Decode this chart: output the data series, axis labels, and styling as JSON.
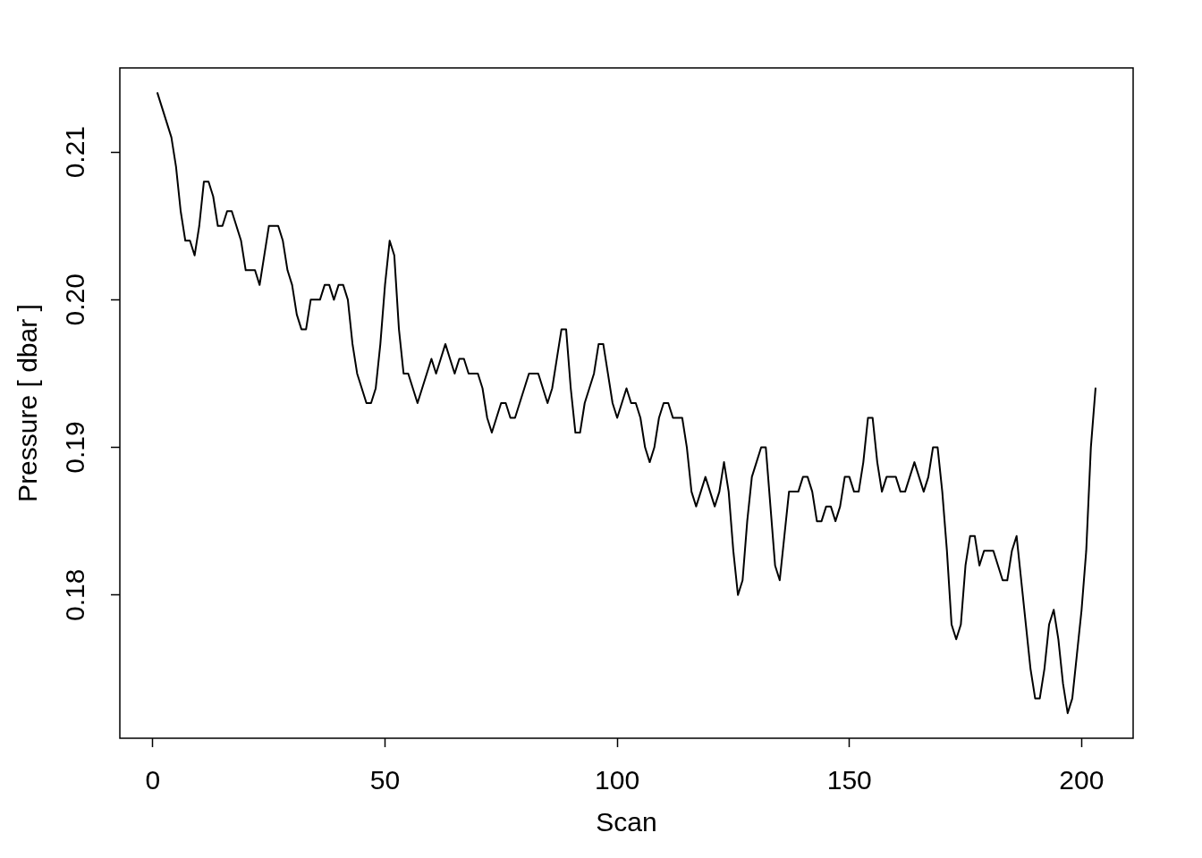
{
  "chart_data": {
    "type": "line",
    "xlabel": "Scan",
    "ylabel": "Pressure [ dbar ]",
    "color": "#000000",
    "x": [
      1,
      2,
      3,
      4,
      5,
      6,
      7,
      8,
      9,
      10,
      11,
      12,
      13,
      14,
      15,
      16,
      17,
      18,
      19,
      20,
      21,
      22,
      23,
      24,
      25,
      26,
      27,
      28,
      29,
      30,
      31,
      32,
      33,
      34,
      35,
      36,
      37,
      38,
      39,
      40,
      41,
      42,
      43,
      44,
      45,
      46,
      47,
      48,
      49,
      50,
      51,
      52,
      53,
      54,
      55,
      56,
      57,
      58,
      59,
      60,
      61,
      62,
      63,
      64,
      65,
      66,
      67,
      68,
      69,
      70,
      71,
      72,
      73,
      74,
      75,
      76,
      77,
      78,
      79,
      80,
      81,
      82,
      83,
      84,
      85,
      86,
      87,
      88,
      89,
      90,
      91,
      92,
      93,
      94,
      95,
      96,
      97,
      98,
      99,
      100,
      101,
      102,
      103,
      104,
      105,
      106,
      107,
      108,
      109,
      110,
      111,
      112,
      113,
      114,
      115,
      116,
      117,
      118,
      119,
      120,
      121,
      122,
      123,
      124,
      125,
      126,
      127,
      128,
      129,
      130,
      131,
      132,
      133,
      134,
      135,
      136,
      137,
      138,
      139,
      140,
      141,
      142,
      143,
      144,
      145,
      146,
      147,
      148,
      149,
      150,
      151,
      152,
      153,
      154,
      155,
      156,
      157,
      158,
      159,
      160,
      161,
      162,
      163,
      164,
      165,
      166,
      167,
      168,
      169,
      170,
      171,
      172,
      173,
      174,
      175,
      176,
      177,
      178,
      179,
      180,
      181,
      182,
      183,
      184,
      185,
      186,
      187,
      188,
      189,
      190,
      191,
      192,
      193,
      194,
      195,
      196,
      197,
      198,
      199,
      200,
      201,
      202,
      203
    ],
    "values": [
      0.214,
      0.213,
      0.212,
      0.211,
      0.209,
      0.206,
      0.204,
      0.204,
      0.203,
      0.205,
      0.208,
      0.208,
      0.207,
      0.205,
      0.205,
      0.206,
      0.206,
      0.205,
      0.204,
      0.202,
      0.202,
      0.202,
      0.201,
      0.203,
      0.205,
      0.205,
      0.205,
      0.204,
      0.202,
      0.201,
      0.199,
      0.198,
      0.198,
      0.2,
      0.2,
      0.2,
      0.201,
      0.201,
      0.2,
      0.201,
      0.201,
      0.2,
      0.197,
      0.195,
      0.194,
      0.193,
      0.193,
      0.194,
      0.197,
      0.201,
      0.204,
      0.203,
      0.198,
      0.195,
      0.195,
      0.194,
      0.193,
      0.194,
      0.195,
      0.196,
      0.195,
      0.196,
      0.197,
      0.196,
      0.195,
      0.196,
      0.196,
      0.195,
      0.195,
      0.195,
      0.194,
      0.192,
      0.191,
      0.192,
      0.193,
      0.193,
      0.192,
      0.192,
      0.193,
      0.194,
      0.195,
      0.195,
      0.195,
      0.194,
      0.193,
      0.194,
      0.196,
      0.198,
      0.198,
      0.194,
      0.191,
      0.191,
      0.193,
      0.194,
      0.195,
      0.197,
      0.197,
      0.195,
      0.193,
      0.192,
      0.193,
      0.194,
      0.193,
      0.193,
      0.192,
      0.19,
      0.189,
      0.19,
      0.192,
      0.193,
      0.193,
      0.192,
      0.192,
      0.192,
      0.19,
      0.187,
      0.186,
      0.187,
      0.188,
      0.187,
      0.186,
      0.187,
      0.189,
      0.187,
      0.183,
      0.18,
      0.181,
      0.185,
      0.188,
      0.189,
      0.19,
      0.19,
      0.186,
      0.182,
      0.181,
      0.184,
      0.187,
      0.187,
      0.187,
      0.188,
      0.188,
      0.187,
      0.185,
      0.185,
      0.186,
      0.186,
      0.185,
      0.186,
      0.188,
      0.188,
      0.187,
      0.187,
      0.189,
      0.192,
      0.192,
      0.189,
      0.187,
      0.188,
      0.188,
      0.188,
      0.187,
      0.187,
      0.188,
      0.189,
      0.188,
      0.187,
      0.188,
      0.19,
      0.19,
      0.187,
      0.183,
      0.178,
      0.177,
      0.178,
      0.182,
      0.184,
      0.184,
      0.182,
      0.183,
      0.183,
      0.183,
      0.182,
      0.181,
      0.181,
      0.183,
      0.184,
      0.181,
      0.178,
      0.175,
      0.173,
      0.173,
      0.175,
      0.178,
      0.179,
      0.177,
      0.174,
      0.172,
      0.173,
      0.176,
      0.179,
      0.183,
      0.19,
      0.194
    ],
    "xlim": [
      -7.1,
      211.1
    ],
    "ylim": [
      0.1703,
      0.2157
    ],
    "xticks": [
      0,
      50,
      100,
      150,
      200
    ],
    "yticks": [
      0.18,
      0.19,
      {
        "value": 0.2,
        "label": "0.20"
      },
      0.21
    ]
  }
}
